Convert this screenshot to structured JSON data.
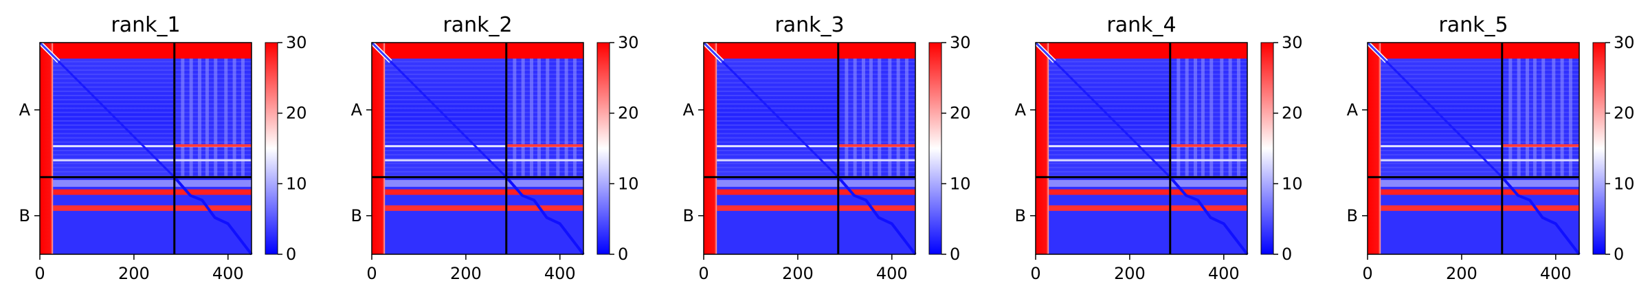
{
  "chart_data": [
    {
      "type": "heatmap",
      "title": "rank_1",
      "xlim": [
        0,
        450
      ],
      "x_ticks": [
        "0",
        "200",
        "400"
      ],
      "y_tick_labels": [
        "A",
        "B"
      ],
      "chain_boundary": 286,
      "colorbar": {
        "min": 0,
        "max": 30,
        "ticks": [
          "0",
          "10",
          "20",
          "30"
        ],
        "colors": [
          "#0000ff",
          "#ffffff",
          "#ff0000"
        ]
      }
    },
    {
      "type": "heatmap",
      "title": "rank_2",
      "xlim": [
        0,
        450
      ],
      "x_ticks": [
        "0",
        "200",
        "400"
      ],
      "y_tick_labels": [
        "A",
        "B"
      ],
      "chain_boundary": 286,
      "colorbar": {
        "min": 0,
        "max": 30,
        "ticks": [
          "0",
          "10",
          "20",
          "30"
        ],
        "colors": [
          "#0000ff",
          "#ffffff",
          "#ff0000"
        ]
      }
    },
    {
      "type": "heatmap",
      "title": "rank_3",
      "xlim": [
        0,
        450
      ],
      "x_ticks": [
        "0",
        "200",
        "400"
      ],
      "y_tick_labels": [
        "A",
        "B"
      ],
      "chain_boundary": 286,
      "colorbar": {
        "min": 0,
        "max": 30,
        "ticks": [
          "0",
          "10",
          "20",
          "30"
        ],
        "colors": [
          "#0000ff",
          "#ffffff",
          "#ff0000"
        ]
      }
    },
    {
      "type": "heatmap",
      "title": "rank_4",
      "xlim": [
        0,
        450
      ],
      "x_ticks": [
        "0",
        "200",
        "400"
      ],
      "y_tick_labels": [
        "A",
        "B"
      ],
      "chain_boundary": 286,
      "colorbar": {
        "min": 0,
        "max": 30,
        "ticks": [
          "0",
          "10",
          "20",
          "30"
        ],
        "colors": [
          "#0000ff",
          "#ffffff",
          "#ff0000"
        ]
      }
    },
    {
      "type": "heatmap",
      "title": "rank_5",
      "xlim": [
        0,
        450
      ],
      "x_ticks": [
        "0",
        "200",
        "400"
      ],
      "y_tick_labels": [
        "A",
        "B"
      ],
      "chain_boundary": 286,
      "colorbar": {
        "min": 0,
        "max": 30,
        "ticks": [
          "0",
          "10",
          "20",
          "30"
        ],
        "colors": [
          "#0000ff",
          "#ffffff",
          "#ff0000"
        ]
      }
    }
  ]
}
